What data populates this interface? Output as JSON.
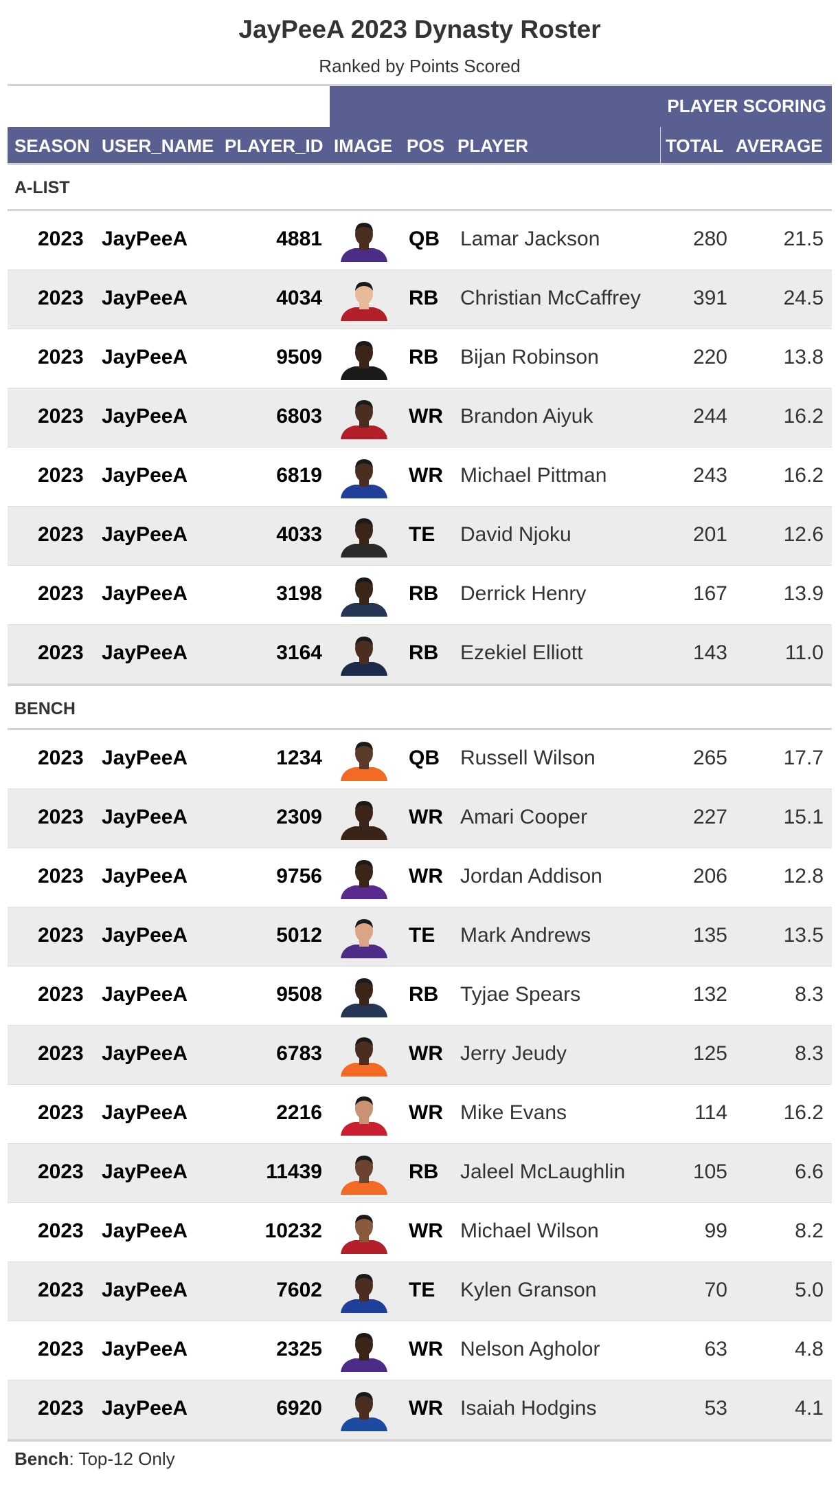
{
  "title": "JayPeeA 2023 Dynasty Roster",
  "subtitle": "Ranked by Points Scored",
  "spanner_label": "PLAYER SCORING",
  "columns": [
    "SEASON",
    "USER_NAME",
    "PLAYER_ID",
    "IMAGE",
    "POS",
    "PLAYER",
    "TOTAL",
    "AVERAGE"
  ],
  "colors": {
    "header_bg": "#5a5f91",
    "alt_row": "#ececec"
  },
  "groups": [
    {
      "label": "A-LIST",
      "rows": [
        {
          "season": "2023",
          "user": "JayPeeA",
          "player_id": "4881",
          "pos": "QB",
          "player": "Lamar Jackson",
          "total": "280",
          "average": "21.5",
          "jersey": "#4b2c86",
          "skin": "#4a2f20"
        },
        {
          "season": "2023",
          "user": "JayPeeA",
          "player_id": "4034",
          "pos": "RB",
          "player": "Christian McCaffrey",
          "total": "391",
          "average": "24.5",
          "jersey": "#b3202a",
          "skin": "#e8b89a"
        },
        {
          "season": "2023",
          "user": "JayPeeA",
          "player_id": "9509",
          "pos": "RB",
          "player": "Bijan Robinson",
          "total": "220",
          "average": "13.8",
          "jersey": "#1a1a1a",
          "skin": "#3b2418"
        },
        {
          "season": "2023",
          "user": "JayPeeA",
          "player_id": "6803",
          "pos": "WR",
          "player": "Brandon Aiyuk",
          "total": "244",
          "average": "16.2",
          "jersey": "#b3202a",
          "skin": "#4a2f20"
        },
        {
          "season": "2023",
          "user": "JayPeeA",
          "player_id": "6819",
          "pos": "WR",
          "player": "Michael Pittman",
          "total": "243",
          "average": "16.2",
          "jersey": "#1f3f9a",
          "skin": "#4a2f20"
        },
        {
          "season": "2023",
          "user": "JayPeeA",
          "player_id": "4033",
          "pos": "TE",
          "player": "David Njoku",
          "total": "201",
          "average": "12.6",
          "jersey": "#2a2a2a",
          "skin": "#3b2418"
        },
        {
          "season": "2023",
          "user": "JayPeeA",
          "player_id": "3198",
          "pos": "RB",
          "player": "Derrick Henry",
          "total": "167",
          "average": "13.9",
          "jersey": "#243654",
          "skin": "#3b2418"
        },
        {
          "season": "2023",
          "user": "JayPeeA",
          "player_id": "3164",
          "pos": "RB",
          "player": "Ezekiel Elliott",
          "total": "143",
          "average": "11.0",
          "jersey": "#1d2b4a",
          "skin": "#4a2f20"
        }
      ]
    },
    {
      "label": "BENCH",
      "rows": [
        {
          "season": "2023",
          "user": "JayPeeA",
          "player_id": "1234",
          "pos": "QB",
          "player": "Russell Wilson",
          "total": "265",
          "average": "17.7",
          "jersey": "#f26a24",
          "skin": "#5a3a28"
        },
        {
          "season": "2023",
          "user": "JayPeeA",
          "player_id": "2309",
          "pos": "WR",
          "player": "Amari Cooper",
          "total": "227",
          "average": "15.1",
          "jersey": "#3a2418",
          "skin": "#3b2418"
        },
        {
          "season": "2023",
          "user": "JayPeeA",
          "player_id": "9756",
          "pos": "WR",
          "player": "Jordan Addison",
          "total": "206",
          "average": "12.8",
          "jersey": "#5b2a8e",
          "skin": "#3b2418"
        },
        {
          "season": "2023",
          "user": "JayPeeA",
          "player_id": "5012",
          "pos": "TE",
          "player": "Mark Andrews",
          "total": "135",
          "average": "13.5",
          "jersey": "#4b2c86",
          "skin": "#d9a584"
        },
        {
          "season": "2023",
          "user": "JayPeeA",
          "player_id": "9508",
          "pos": "RB",
          "player": "Tyjae Spears",
          "total": "132",
          "average": "8.3",
          "jersey": "#243654",
          "skin": "#3b2418"
        },
        {
          "season": "2023",
          "user": "JayPeeA",
          "player_id": "6783",
          "pos": "WR",
          "player": "Jerry Jeudy",
          "total": "125",
          "average": "8.3",
          "jersey": "#f26a24",
          "skin": "#4a2f20"
        },
        {
          "season": "2023",
          "user": "JayPeeA",
          "player_id": "2216",
          "pos": "WR",
          "player": "Mike Evans",
          "total": "114",
          "average": "16.2",
          "jersey": "#c8202f",
          "skin": "#c99272"
        },
        {
          "season": "2023",
          "user": "JayPeeA",
          "player_id": "11439",
          "pos": "RB",
          "player": "Jaleel McLaughlin",
          "total": "105",
          "average": "6.6",
          "jersey": "#f26a24",
          "skin": "#6a4430"
        },
        {
          "season": "2023",
          "user": "JayPeeA",
          "player_id": "10232",
          "pos": "WR",
          "player": "Michael Wilson",
          "total": "99",
          "average": "8.2",
          "jersey": "#b3202a",
          "skin": "#8a5a3c"
        },
        {
          "season": "2023",
          "user": "JayPeeA",
          "player_id": "7602",
          "pos": "TE",
          "player": "Kylen Granson",
          "total": "70",
          "average": "5.0",
          "jersey": "#1f3f9a",
          "skin": "#4a2f20"
        },
        {
          "season": "2023",
          "user": "JayPeeA",
          "player_id": "2325",
          "pos": "WR",
          "player": "Nelson Agholor",
          "total": "63",
          "average": "4.8",
          "jersey": "#4b2c86",
          "skin": "#3b2418"
        },
        {
          "season": "2023",
          "user": "JayPeeA",
          "player_id": "6920",
          "pos": "WR",
          "player": "Isaiah Hodgins",
          "total": "53",
          "average": "4.1",
          "jersey": "#1c4ba0",
          "skin": "#4a2f20"
        }
      ]
    }
  ],
  "footnote": {
    "label": "Bench",
    "text": ": Top-12 Only"
  }
}
